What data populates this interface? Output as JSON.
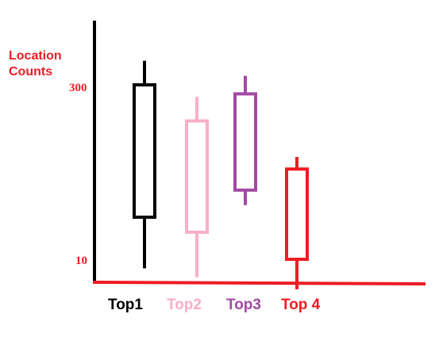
{
  "chart_data": {
    "type": "box",
    "title": "",
    "xlabel": "",
    "ylabel_lines": [
      "Location",
      "Counts"
    ],
    "ytick_labels": [
      "300",
      "10"
    ],
    "ytick_values": [
      300,
      10
    ],
    "grid": false,
    "categories": [
      "Top1",
      "Top2",
      "Top3",
      "Top 4"
    ],
    "series": [
      {
        "category": "Top1",
        "whisker_low": -5,
        "box_low": 80,
        "box_high": 300,
        "whisker_high": 340,
        "color": "#000000"
      },
      {
        "category": "Top2",
        "whisker_low": -20,
        "box_low": 55,
        "box_high": 240,
        "whisker_high": 280,
        "color": "#f9aec8"
      },
      {
        "category": "Top3",
        "whisker_low": 100,
        "box_low": 125,
        "box_high": 285,
        "whisker_high": 315,
        "color": "#a349a4"
      },
      {
        "category": "Top 4",
        "whisker_low": -40,
        "box_low": 10,
        "box_high": 160,
        "whisker_high": 180,
        "color": "#ed1c24"
      }
    ],
    "colors": {
      "y_axis": "#000000",
      "x_axis": "#ed1c24",
      "ylabel": "#ed1c24",
      "ticks": "#ed1c24"
    }
  }
}
